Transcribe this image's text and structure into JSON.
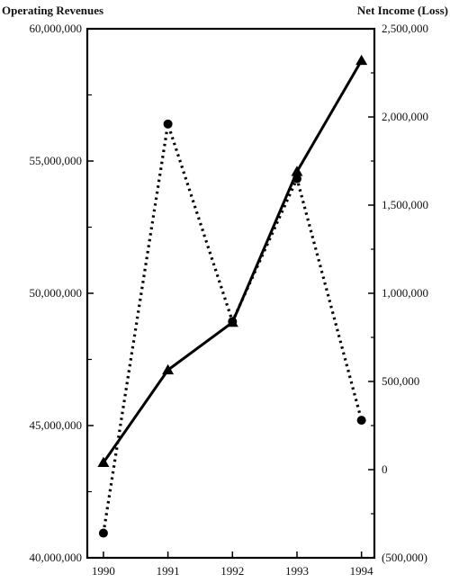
{
  "chart_data": {
    "type": "line",
    "x": [
      1990,
      1991,
      1992,
      1993,
      1994
    ],
    "left_axis": {
      "label": "Operating Revenues",
      "ylim": [
        40000000,
        60000000
      ],
      "ticks": [
        40000000,
        45000000,
        50000000,
        55000000,
        60000000
      ],
      "tick_labels": [
        "40,000,000",
        "45,000,000",
        "50,000,000",
        "55,000,000",
        "60,000,000"
      ]
    },
    "right_axis": {
      "label": "Net Income (Loss)",
      "ylim": [
        -500000,
        2500000
      ],
      "ticks": [
        -500000,
        0,
        500000,
        1000000,
        1500000,
        2000000,
        2500000
      ],
      "tick_labels": [
        "(500,000)",
        "0",
        "500,000",
        "1,000,000",
        "1,500,000",
        "2,000,000",
        "2,500,000"
      ]
    },
    "x_tick_labels": [
      "1990",
      "1991",
      "1992",
      "1993",
      "1994"
    ],
    "series": [
      {
        "axis": "left",
        "line": "solid",
        "marker": "triangle",
        "values": [
          43600000,
          47100000,
          48900000,
          54600000,
          58800000
        ]
      },
      {
        "axis": "right",
        "line": "dotted",
        "marker": "circle",
        "values": [
          -360000,
          1960000,
          840000,
          1650000,
          280000
        ]
      }
    ],
    "grid": false
  }
}
